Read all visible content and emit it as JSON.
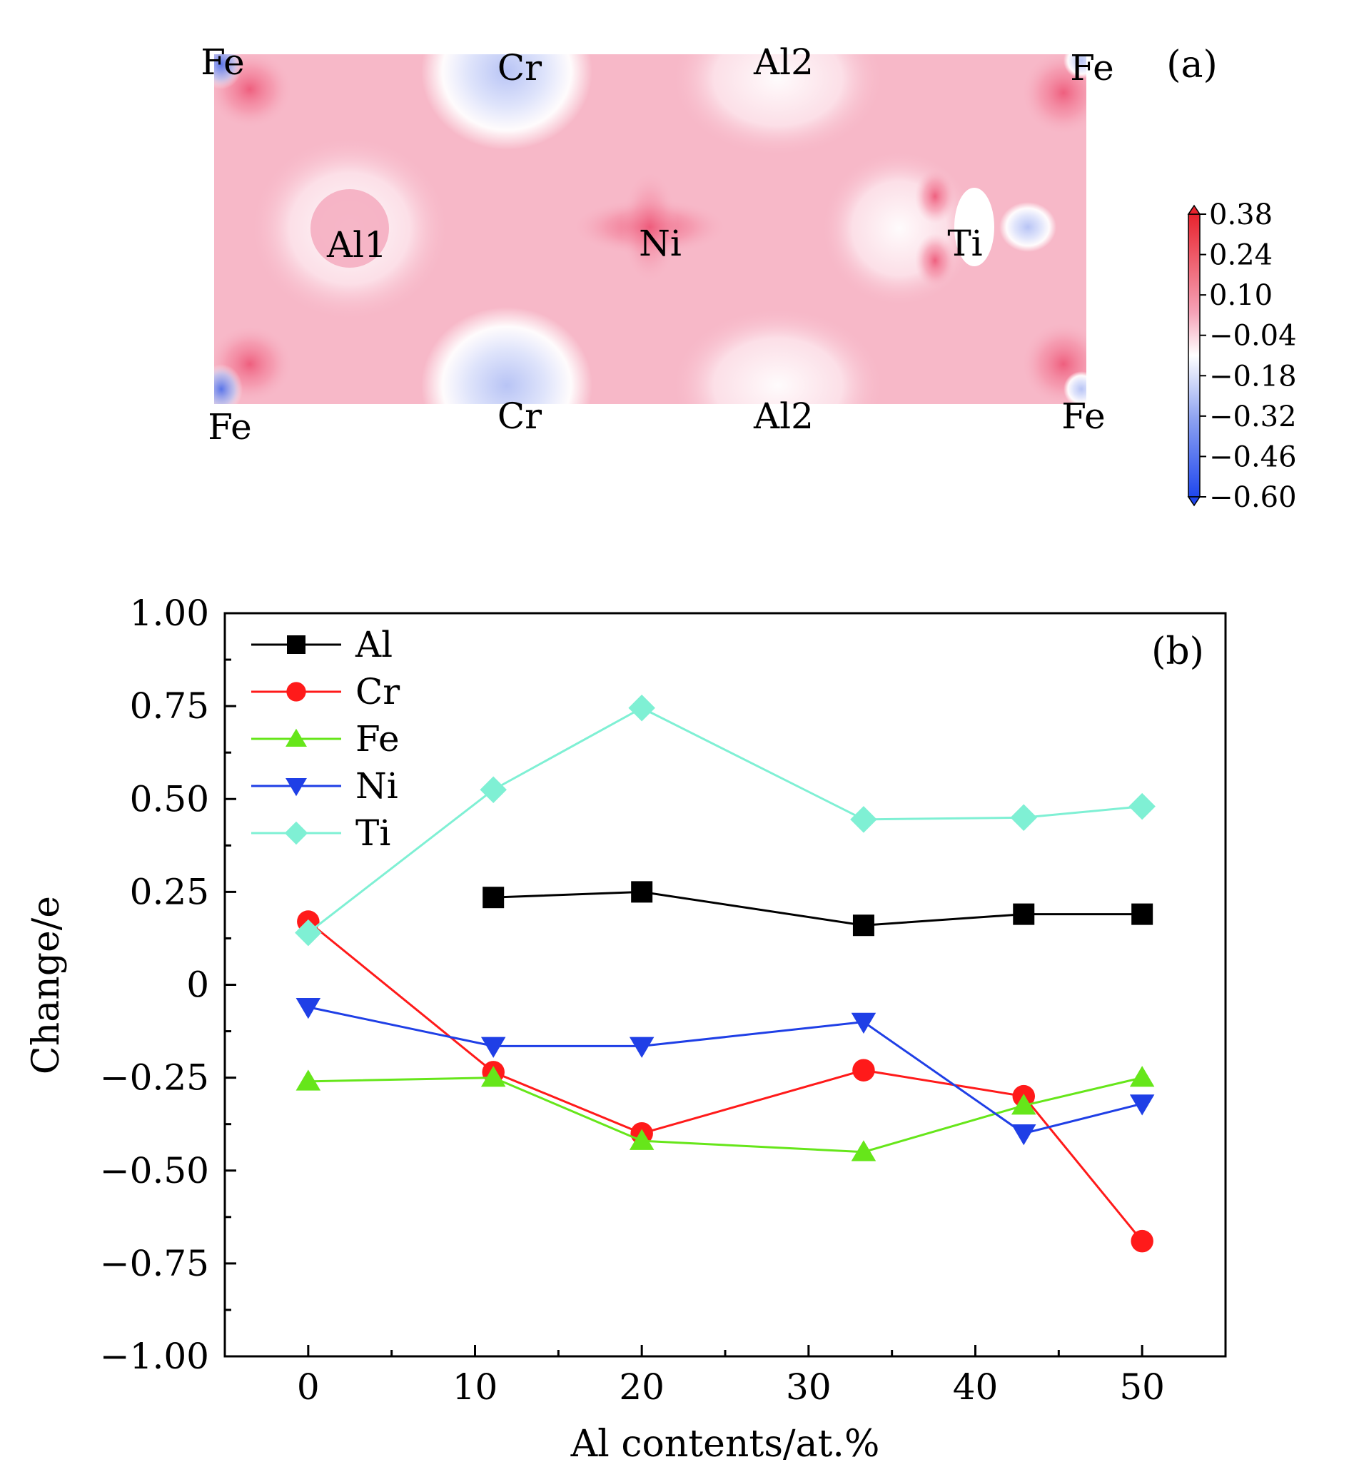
{
  "panel_a": {
    "panel_label": "(a)",
    "atom_labels": [
      "Fe",
      "Cr",
      "Al2",
      "Fe",
      "Al1",
      "Ni",
      "Ti",
      "Fe",
      "Cr",
      "Al2",
      "Fe"
    ],
    "colorbar": {
      "ticks": [
        "0.38",
        "0.24",
        "0.10",
        "−0.04",
        "−0.18",
        "−0.32",
        "−0.46",
        "−0.60"
      ],
      "max_color": "#e8242e",
      "mid_color": "#ffffff",
      "min_color": "#1f47ee"
    },
    "map_base_color": "#f7b8c8"
  },
  "chart_data": {
    "type": "line",
    "panel_label": "(b)",
    "xlabel": "Al contents/at.%",
    "ylabel": "Change/e",
    "xlim": [
      -5,
      55
    ],
    "ylim": [
      -1.0,
      1.0
    ],
    "x_ticks": [
      "0",
      "10",
      "20",
      "30",
      "40",
      "50"
    ],
    "y_ticks": [
      "1.00",
      "0.75",
      "0.50",
      "0.25",
      "0",
      "−0.25",
      "−0.50",
      "−0.75",
      "−1.00"
    ],
    "legend_position": "top-left",
    "series": [
      {
        "name": "Al",
        "color": "#000000",
        "marker": "square",
        "x": [
          11.1,
          20,
          33.3,
          42.9,
          50
        ],
        "values": [
          0.235,
          0.25,
          0.16,
          0.19,
          0.19
        ]
      },
      {
        "name": "Cr",
        "color": "#ff1a1a",
        "marker": "circle",
        "x": [
          0,
          11.1,
          20,
          33.3,
          42.9,
          50
        ],
        "values": [
          0.17,
          -0.235,
          -0.4,
          -0.23,
          -0.3,
          -0.69
        ]
      },
      {
        "name": "Fe",
        "color": "#66e61a",
        "marker": "triangle-up",
        "x": [
          0,
          11.1,
          20,
          33.3,
          42.9,
          50
        ],
        "values": [
          -0.26,
          -0.25,
          -0.42,
          -0.45,
          -0.325,
          -0.25
        ]
      },
      {
        "name": "Ni",
        "color": "#1f3fe6",
        "marker": "triangle-down",
        "x": [
          0,
          11.1,
          20,
          33.3,
          42.9,
          50
        ],
        "values": [
          -0.06,
          -0.165,
          -0.165,
          -0.1,
          -0.4,
          -0.32
        ]
      },
      {
        "name": "Ti",
        "color": "#7ff0d4",
        "marker": "diamond",
        "x": [
          0,
          11.1,
          20,
          33.3,
          42.9,
          50
        ],
        "values": [
          0.14,
          0.525,
          0.745,
          0.445,
          0.45,
          0.48
        ]
      }
    ]
  }
}
